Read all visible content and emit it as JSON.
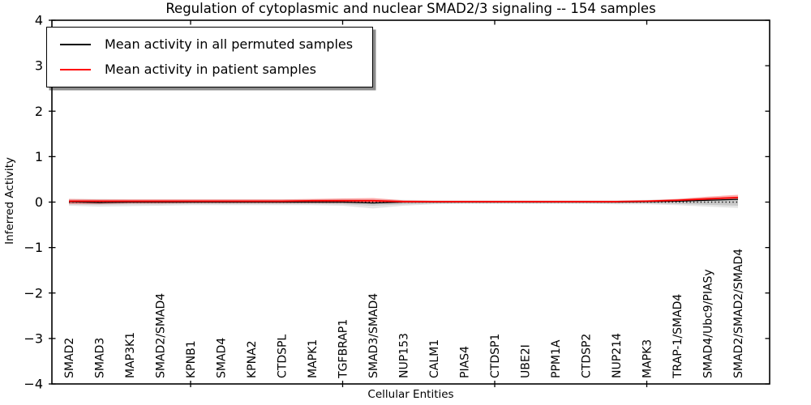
{
  "figure": {
    "title": "Regulation of cytoplasmic and nuclear SMAD2/3 signaling -- 154 samples",
    "xlabel": "Cellular Entities",
    "ylabel": "Inferred Activity"
  },
  "legend": {
    "position": "upper left",
    "items": [
      {
        "label": "Mean activity in all permuted samples",
        "color": "#000000"
      },
      {
        "label": "Mean activity in patient samples",
        "color": "#ff0000"
      }
    ]
  },
  "chart_data": {
    "type": "line",
    "title": "Regulation of cytoplasmic and nuclear SMAD2/3 signaling -- 154 samples",
    "xlabel": "Cellular Entities",
    "ylabel": "Inferred Activity",
    "ylim": [
      -4,
      4
    ],
    "yticks": [
      -4,
      -3,
      -2,
      -1,
      0,
      1,
      2,
      3,
      4
    ],
    "ytick_labels": [
      "−4",
      "−3",
      "−2",
      "−1",
      "0",
      "1",
      "2",
      "3",
      "4"
    ],
    "x_major_tick_indices": [
      4,
      9,
      14,
      19
    ],
    "grid": false,
    "legend_position": "upper left",
    "categories": [
      "SMAD2",
      "SMAD3",
      "MAP3K1",
      "SMAD2/SMAD4",
      "KPNB1",
      "SMAD4",
      "KPNA2",
      "CTDSPL",
      "MAPK1",
      "TGFBRAP1",
      "SMAD3/SMAD4",
      "NUP153",
      "CALM1",
      "PIAS4",
      "CTDSP1",
      "UBE2I",
      "PPM1A",
      "CTDSP2",
      "NUP214",
      "MAPK3",
      "TRAP-1/SMAD4",
      "SMAD4/Ubc9/PIASy",
      "SMAD2/SMAD2/SMAD4"
    ],
    "series": [
      {
        "name": "Mean activity in all permuted samples",
        "color": "#000000",
        "width": 1.3,
        "values": [
          0.01,
          -0.01,
          0.0,
          0.0,
          0.0,
          0.0,
          0.0,
          0.0,
          0.0,
          0.0,
          -0.02,
          0.0,
          0.0,
          0.0,
          0.0,
          0.0,
          0.0,
          0.0,
          0.0,
          0.01,
          0.02,
          0.04,
          0.06
        ]
      },
      {
        "name": "Mean activity in patient samples",
        "color": "#ff0000",
        "width": 1.8,
        "values": [
          0.02,
          0.02,
          0.02,
          0.02,
          0.02,
          0.02,
          0.02,
          0.02,
          0.03,
          0.03,
          0.03,
          0.01,
          0.01,
          0.01,
          0.01,
          0.01,
          0.01,
          0.01,
          0.01,
          0.02,
          0.04,
          0.07,
          0.1
        ]
      }
    ],
    "bands": [
      {
        "name": "permuted-sample-range-outer",
        "color": "#000000",
        "opacity": 0.1,
        "hi": [
          0.07,
          0.07,
          0.06,
          0.06,
          0.06,
          0.06,
          0.06,
          0.06,
          0.06,
          0.07,
          0.06,
          0.05,
          0.04,
          0.04,
          0.04,
          0.04,
          0.04,
          0.04,
          0.04,
          0.05,
          0.07,
          0.1,
          0.12
        ],
        "lo": [
          -0.08,
          -0.1,
          -0.09,
          -0.08,
          -0.07,
          -0.07,
          -0.07,
          -0.07,
          -0.07,
          -0.08,
          -0.14,
          -0.08,
          -0.05,
          -0.04,
          -0.04,
          -0.04,
          -0.04,
          -0.04,
          -0.05,
          -0.05,
          -0.07,
          -0.1,
          -0.13
        ]
      },
      {
        "name": "permuted-sample-range-inner",
        "color": "#000000",
        "opacity": 0.12,
        "hi": [
          0.04,
          0.04,
          0.03,
          0.03,
          0.03,
          0.03,
          0.03,
          0.03,
          0.03,
          0.04,
          0.03,
          0.03,
          0.02,
          0.02,
          0.02,
          0.02,
          0.02,
          0.02,
          0.02,
          0.03,
          0.04,
          0.06,
          0.07
        ],
        "lo": [
          -0.05,
          -0.06,
          -0.05,
          -0.05,
          -0.04,
          -0.04,
          -0.04,
          -0.04,
          -0.04,
          -0.05,
          -0.08,
          -0.05,
          -0.03,
          -0.02,
          -0.02,
          -0.02,
          -0.02,
          -0.02,
          -0.03,
          -0.03,
          -0.04,
          -0.06,
          -0.08
        ]
      },
      {
        "name": "patient-sample-range",
        "color": "#ff0000",
        "opacity": 0.32,
        "hi": [
          0.07,
          0.06,
          0.06,
          0.06,
          0.06,
          0.06,
          0.06,
          0.06,
          0.07,
          0.08,
          0.09,
          0.04,
          0.03,
          0.03,
          0.03,
          0.03,
          0.03,
          0.03,
          0.03,
          0.04,
          0.07,
          0.12,
          0.16
        ],
        "lo": [
          -0.04,
          -0.04,
          -0.03,
          -0.03,
          -0.02,
          -0.02,
          -0.02,
          -0.02,
          -0.02,
          -0.02,
          -0.03,
          -0.01,
          -0.01,
          -0.01,
          -0.01,
          -0.01,
          -0.01,
          -0.01,
          -0.01,
          0.0,
          0.02,
          0.04,
          0.05
        ]
      }
    ],
    "zero_line": {
      "y": 0,
      "style": "dotted",
      "color": "#000000"
    }
  }
}
